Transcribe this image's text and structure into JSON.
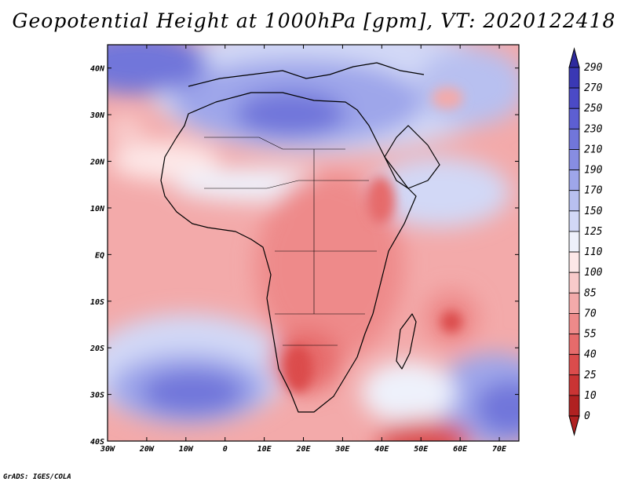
{
  "title": "Geopotential Height at 1000hPa [gpm], VT: 2020122418",
  "credit": "GrADS: IGES/COLA",
  "map": {
    "lon_range": [
      -30,
      75
    ],
    "lat_range": [
      -40,
      45
    ],
    "lon_ticks": [
      "30W",
      "20W",
      "10W",
      "0",
      "10E",
      "20E",
      "30E",
      "40E",
      "50E",
      "60E",
      "70E"
    ],
    "lon_values": [
      -30,
      -20,
      -10,
      0,
      10,
      20,
      30,
      40,
      50,
      60,
      70
    ],
    "lat_ticks": [
      "40N",
      "30N",
      "20N",
      "10N",
      "EQ",
      "10S",
      "20S",
      "30S",
      "40S"
    ],
    "lat_values": [
      40,
      30,
      20,
      10,
      0,
      -10,
      -20,
      -30,
      -40
    ]
  },
  "colorbar": {
    "labels": [
      "290",
      "270",
      "250",
      "230",
      "210",
      "190",
      "170",
      "150",
      "125",
      "110",
      "100",
      "85",
      "70",
      "55",
      "40",
      "25",
      "10",
      "0"
    ],
    "colors": [
      "#2e2a9e",
      "#3a38b4",
      "#4b4ac6",
      "#5d5fd2",
      "#7176da",
      "#878de2",
      "#9ea6ea",
      "#b8c0f0",
      "#d2d8f6",
      "#eef1fb",
      "#fde8e8",
      "#f8caca",
      "#f3aaaa",
      "#ee8a8a",
      "#e66b6b",
      "#db4c4c",
      "#c93434",
      "#b02121"
    ]
  },
  "colors": {
    "ocean_pos": "#f3aaaa",
    "land_pos": "#ee8a8a",
    "high": "#4b4ac6"
  }
}
